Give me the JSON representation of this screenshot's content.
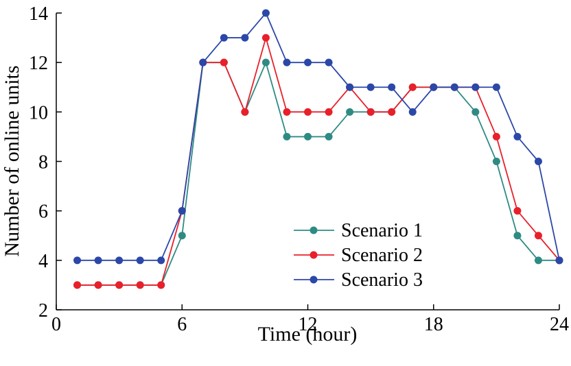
{
  "chart_data": {
    "type": "line",
    "title": "",
    "xlabel": "Time (hour)",
    "ylabel": "Number of online units",
    "xlim": [
      0,
      24
    ],
    "ylim": [
      2,
      14
    ],
    "xticks": [
      0,
      6,
      12,
      18,
      24
    ],
    "yticks": [
      2,
      4,
      6,
      8,
      10,
      12,
      14
    ],
    "grid": false,
    "legend_position": "bottom-center",
    "x": [
      1,
      2,
      3,
      4,
      5,
      6,
      7,
      8,
      9,
      10,
      11,
      12,
      13,
      14,
      15,
      16,
      17,
      18,
      19,
      20,
      21,
      22,
      23,
      24
    ],
    "series": [
      {
        "name": "Scenario 1",
        "color": "#2e8b84",
        "values": [
          3,
          3,
          3,
          3,
          3,
          5,
          12,
          12,
          10,
          12,
          9,
          9,
          9,
          10,
          10,
          10,
          11,
          11,
          11,
          10,
          8,
          5,
          4,
          4
        ]
      },
      {
        "name": "Scenario 2",
        "color": "#e8202a",
        "values": [
          3,
          3,
          3,
          3,
          3,
          6,
          12,
          12,
          10,
          13,
          10,
          10,
          10,
          11,
          10,
          10,
          11,
          11,
          11,
          11,
          9,
          6,
          5,
          4
        ]
      },
      {
        "name": "Scenario 3",
        "color": "#2b47a8",
        "values": [
          4,
          4,
          4,
          4,
          4,
          6,
          12,
          13,
          13,
          14,
          12,
          12,
          12,
          11,
          11,
          11,
          10,
          11,
          11,
          11,
          11,
          9,
          8,
          4
        ]
      }
    ]
  }
}
